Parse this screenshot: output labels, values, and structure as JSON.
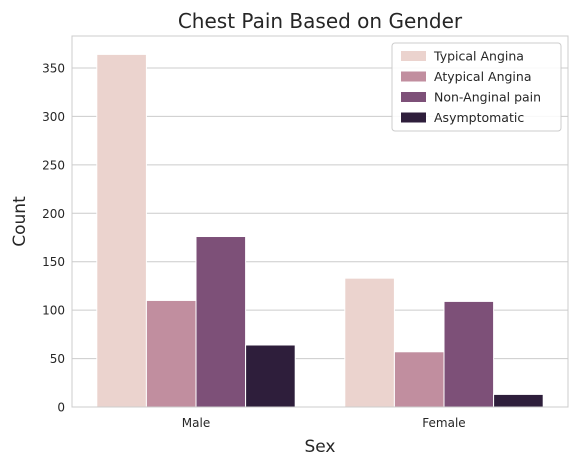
{
  "chart_data": {
    "type": "bar",
    "title": "Chest Pain Based on Gender",
    "xlabel": "Sex",
    "ylabel": "Count",
    "categories": [
      "Male",
      "Female"
    ],
    "ylim": [
      0,
      383
    ],
    "yticks": [
      0,
      50,
      100,
      150,
      200,
      250,
      300,
      350
    ],
    "grid": true,
    "legend_position": "top-right",
    "series": [
      {
        "name": "Typical Angina",
        "color": "#ebd3ce",
        "values": [
          364,
          133
        ]
      },
      {
        "name": "Atypical Angina",
        "color": "#c18e9f",
        "values": [
          110,
          57
        ]
      },
      {
        "name": "Non-Anginal pain",
        "color": "#7d5078",
        "values": [
          176,
          109
        ]
      },
      {
        "name": "Asymptomatic",
        "color": "#2e1e3b",
        "values": [
          64,
          13
        ]
      }
    ]
  }
}
